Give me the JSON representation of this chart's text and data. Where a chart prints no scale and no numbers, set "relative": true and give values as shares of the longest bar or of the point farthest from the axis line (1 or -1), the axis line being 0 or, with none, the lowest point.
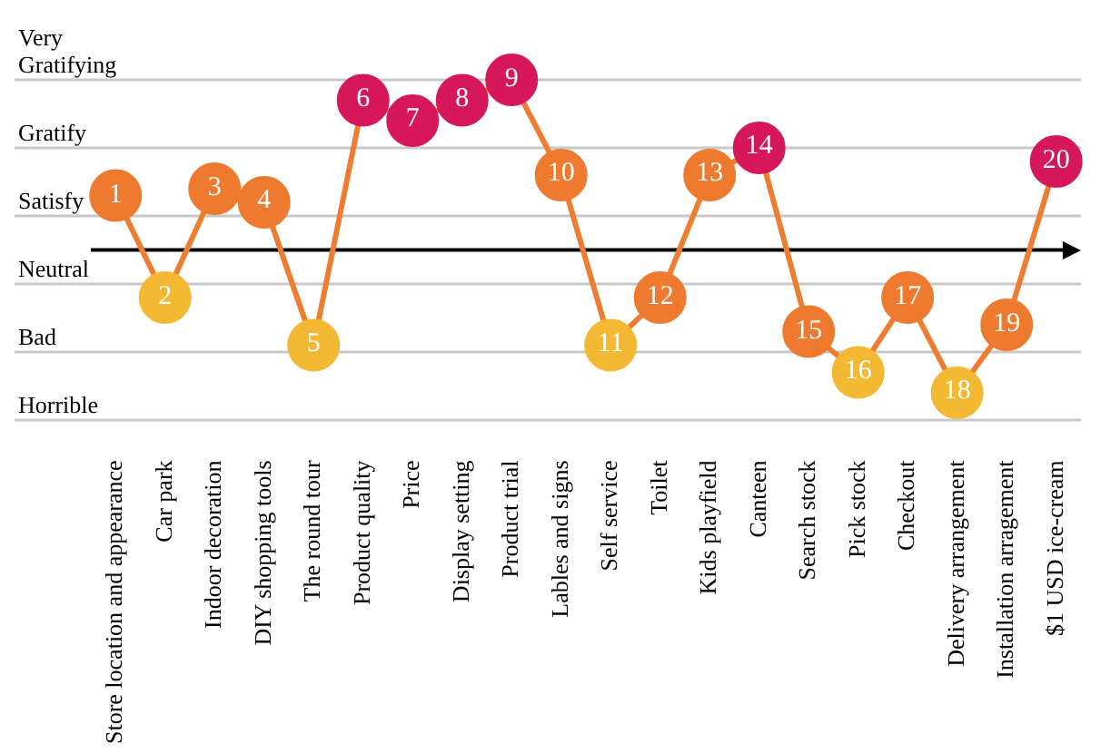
{
  "chart_data": {
    "type": "line",
    "relative": true,
    "categories": [
      "Store location and appearance",
      "Car park",
      "Indoor decoration",
      "DIY shopping tools",
      "The round tour",
      "Product quality",
      "Price",
      "Display setting",
      "Product trial",
      "Lables and signs",
      "Self service",
      "Toilet",
      "Kids playfield",
      "Canteen",
      "Search stock",
      "Pick stock",
      "Checkout",
      "Delivery arrangement",
      "Installation arragement",
      "$1 USD ice-cream"
    ],
    "series": [
      {
        "color": "#ee7d31",
        "values": [
          0.32,
          -0.28,
          0.36,
          0.28,
          -0.56,
          0.88,
          0.76,
          0.88,
          1,
          0.44,
          -0.56,
          -0.28,
          0.44,
          0.6,
          -0.48,
          -0.72,
          -0.28,
          -0.84,
          -0.44,
          0.52
        ],
        "colors": [
          "#ee7a2f",
          "#f4b933",
          "#ee7a2f",
          "#ee7a2f",
          "#f4b933",
          "#d6185a",
          "#d6185a",
          "#d6185a",
          "#d6185a",
          "#ee7a2f",
          "#f4b933",
          "#ee7a2f",
          "#ee7a2f",
          "#d6185a",
          "#ee7a2f",
          "#f4b933",
          "#ee7a2f",
          "#f4b933",
          "#ee7a2f",
          "#d6185a"
        ]
      }
    ],
    "annotations": [
      {
        "text": "1",
        "x": "Store location and appearance",
        "y": 0.32
      },
      {
        "text": "2",
        "x": "Car park",
        "y": -0.28
      },
      {
        "text": "3",
        "x": "Indoor decoration",
        "y": 0.36
      },
      {
        "text": "4",
        "x": "DIY shopping tools",
        "y": 0.28
      },
      {
        "text": "5",
        "x": "The round tour",
        "y": -0.56
      },
      {
        "text": "6",
        "x": "Product quality",
        "y": 0.88
      },
      {
        "text": "7",
        "x": "Price",
        "y": 0.76
      },
      {
        "text": "8",
        "x": "Display setting",
        "y": 0.88
      },
      {
        "text": "9",
        "x": "Product trial",
        "y": 1
      },
      {
        "text": "10",
        "x": "Lables and signs",
        "y": 0.44
      },
      {
        "text": "11",
        "x": "Self service",
        "y": -0.56
      },
      {
        "text": "12",
        "x": "Toilet",
        "y": -0.28
      },
      {
        "text": "13",
        "x": "Kids playfield",
        "y": 0.44
      },
      {
        "text": "14",
        "x": "Canteen",
        "y": 0.6
      },
      {
        "text": "15",
        "x": "Search stock",
        "y": -0.48
      },
      {
        "text": "16",
        "x": "Pick stock",
        "y": -0.72
      },
      {
        "text": "17",
        "x": "Checkout",
        "y": -0.28
      },
      {
        "text": "18",
        "x": "Delivery arrangement",
        "y": -0.84
      },
      {
        "text": "19",
        "x": "Installation arragement",
        "y": -0.44
      },
      {
        "text": "20",
        "x": "$1 USD ice-cream",
        "y": 0.52
      }
    ],
    "ref_lines": [
      {
        "axis": "y",
        "value": 1,
        "label": "Very Gratifying",
        "color": "#c8c8c8"
      },
      {
        "axis": "y",
        "value": 0.6,
        "label": "Gratify",
        "color": "#c8c8c8"
      },
      {
        "axis": "y",
        "value": 0.2,
        "label": "Satisfy",
        "color": "#c8c8c8"
      },
      {
        "axis": "y",
        "value": -0.2,
        "label": "Neutral",
        "color": "#c8c8c8"
      },
      {
        "axis": "y",
        "value": -0.6,
        "label": "Bad",
        "color": "#c8c8c8"
      },
      {
        "axis": "y",
        "value": -1,
        "label": "Horrible",
        "color": "#c8c8c8"
      }
    ],
    "legend": false,
    "marker": "circle",
    "line_style": "solid"
  }
}
